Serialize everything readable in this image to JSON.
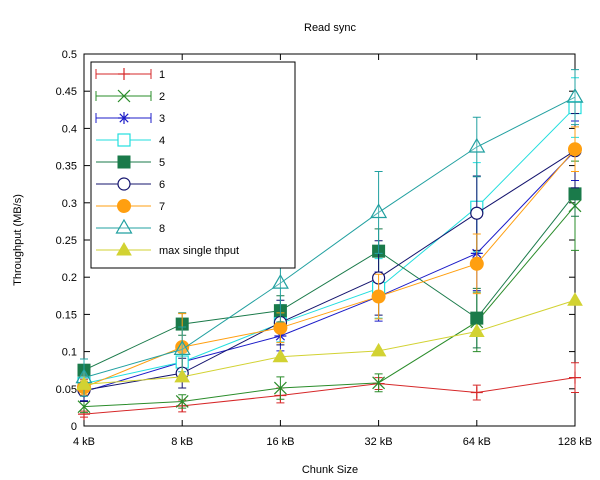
{
  "chart_data": {
    "type": "line",
    "title": "Read sync",
    "xlabel": "Chunk Size",
    "ylabel": "Throughput (MB/s)",
    "categories": [
      "4 kB",
      "8 kB",
      "16 kB",
      "32 kB",
      "64 kB",
      "128 kB"
    ],
    "ylim": [
      0,
      0.5
    ],
    "yticks": [
      "0",
      "0.05",
      "0.1",
      "0.15",
      "0.2",
      "0.25",
      "0.3",
      "0.35",
      "0.4",
      "0.45",
      "0.5"
    ],
    "grid": false,
    "legend_position": "top-left",
    "series": [
      {
        "name": "1",
        "color": "#d62728",
        "marker": "plus",
        "values": [
          0.016,
          0.027,
          0.041,
          0.057,
          0.045,
          0.065
        ],
        "errors": [
          0.004,
          0.008,
          0.01,
          0.008,
          0.01,
          0.02
        ]
      },
      {
        "name": "2",
        "color": "#2a8c2a",
        "marker": "x",
        "values": [
          0.026,
          0.033,
          0.051,
          0.058,
          0.14,
          0.296
        ],
        "errors": [
          0.008,
          0.009,
          0.015,
          0.012,
          0.04,
          0.06
        ]
      },
      {
        "name": "3",
        "color": "#1c1cc8",
        "marker": "star",
        "values": [
          0.046,
          0.086,
          0.121,
          0.174,
          0.232,
          0.37
        ],
        "errors": [
          0.012,
          0.015,
          0.02,
          0.033,
          0.05,
          0.04
        ]
      },
      {
        "name": "4",
        "color": "#22dede",
        "marker": "open-square",
        "values": [
          0.057,
          0.086,
          0.138,
          0.185,
          0.294,
          0.428
        ],
        "errors": [
          0.015,
          0.015,
          0.025,
          0.04,
          0.06,
          0.04
        ]
      },
      {
        "name": "5",
        "color": "#1a7a4a",
        "marker": "filled-square",
        "values": [
          0.075,
          0.137,
          0.155,
          0.235,
          0.145,
          0.312
        ],
        "errors": [
          0.015,
          0.015,
          0.02,
          0.03,
          0.04,
          0.03
        ]
      },
      {
        "name": "6",
        "color": "#14146e",
        "marker": "open-circle",
        "values": [
          0.048,
          0.071,
          0.139,
          0.199,
          0.286,
          0.37
        ],
        "errors": [
          0.015,
          0.02,
          0.03,
          0.05,
          0.05,
          0.05
        ]
      },
      {
        "name": "7",
        "color": "#ff9f10",
        "marker": "filled-circle",
        "values": [
          0.052,
          0.106,
          0.132,
          0.174,
          0.218,
          0.372
        ],
        "errors": [
          0.01,
          0.045,
          0.02,
          0.03,
          0.04,
          0.03
        ]
      },
      {
        "name": "8",
        "color": "#21a0a0",
        "marker": "open-triangle",
        "values": [
          0.065,
          0.103,
          0.192,
          0.287,
          0.375,
          0.442
        ],
        "errors": [
          0.025,
          0.03,
          0.052,
          0.055,
          0.04,
          0.037
        ]
      },
      {
        "name": "max single thput",
        "color": "#d2d232",
        "marker": "filled-triangle",
        "values": [
          0.056,
          0.066,
          0.093,
          0.101,
          0.127,
          0.169
        ],
        "errors": []
      }
    ]
  }
}
